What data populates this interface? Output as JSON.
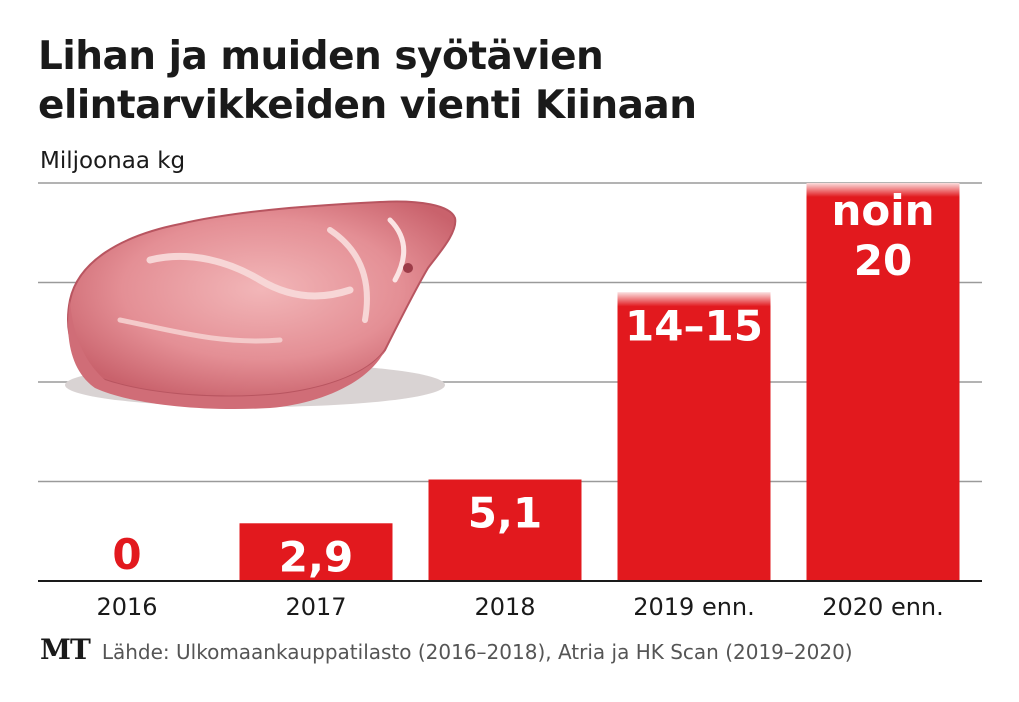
{
  "title_line1": "Lihan ja muiden syötävien",
  "title_line2": "elintarvikkeiden vienti Kiinaan",
  "unit": "Miljoonaa kg",
  "logo": "MT",
  "source": "Lähde: Ulkomaankauppatilasto (2016–2018), Atria ja HK Scan (2019–2020)",
  "colors": {
    "bar": "#e2191e",
    "grid": "#9a9a9a",
    "text": "#1a1a1a"
  },
  "illustration": "meat-cut",
  "chart_data": {
    "type": "bar",
    "categories": [
      "2016",
      "2017",
      "2018",
      "2019 enn.",
      "2020 enn."
    ],
    "values": [
      0,
      2.9,
      5.1,
      14.5,
      20
    ],
    "value_labels": [
      [
        "0"
      ],
      [
        "2,9"
      ],
      [
        "5,1"
      ],
      [
        "14–15"
      ],
      [
        "noin",
        "20"
      ]
    ],
    "ylim": [
      0,
      20
    ],
    "grid": true,
    "ylabel": "Miljoonaa kg"
  }
}
